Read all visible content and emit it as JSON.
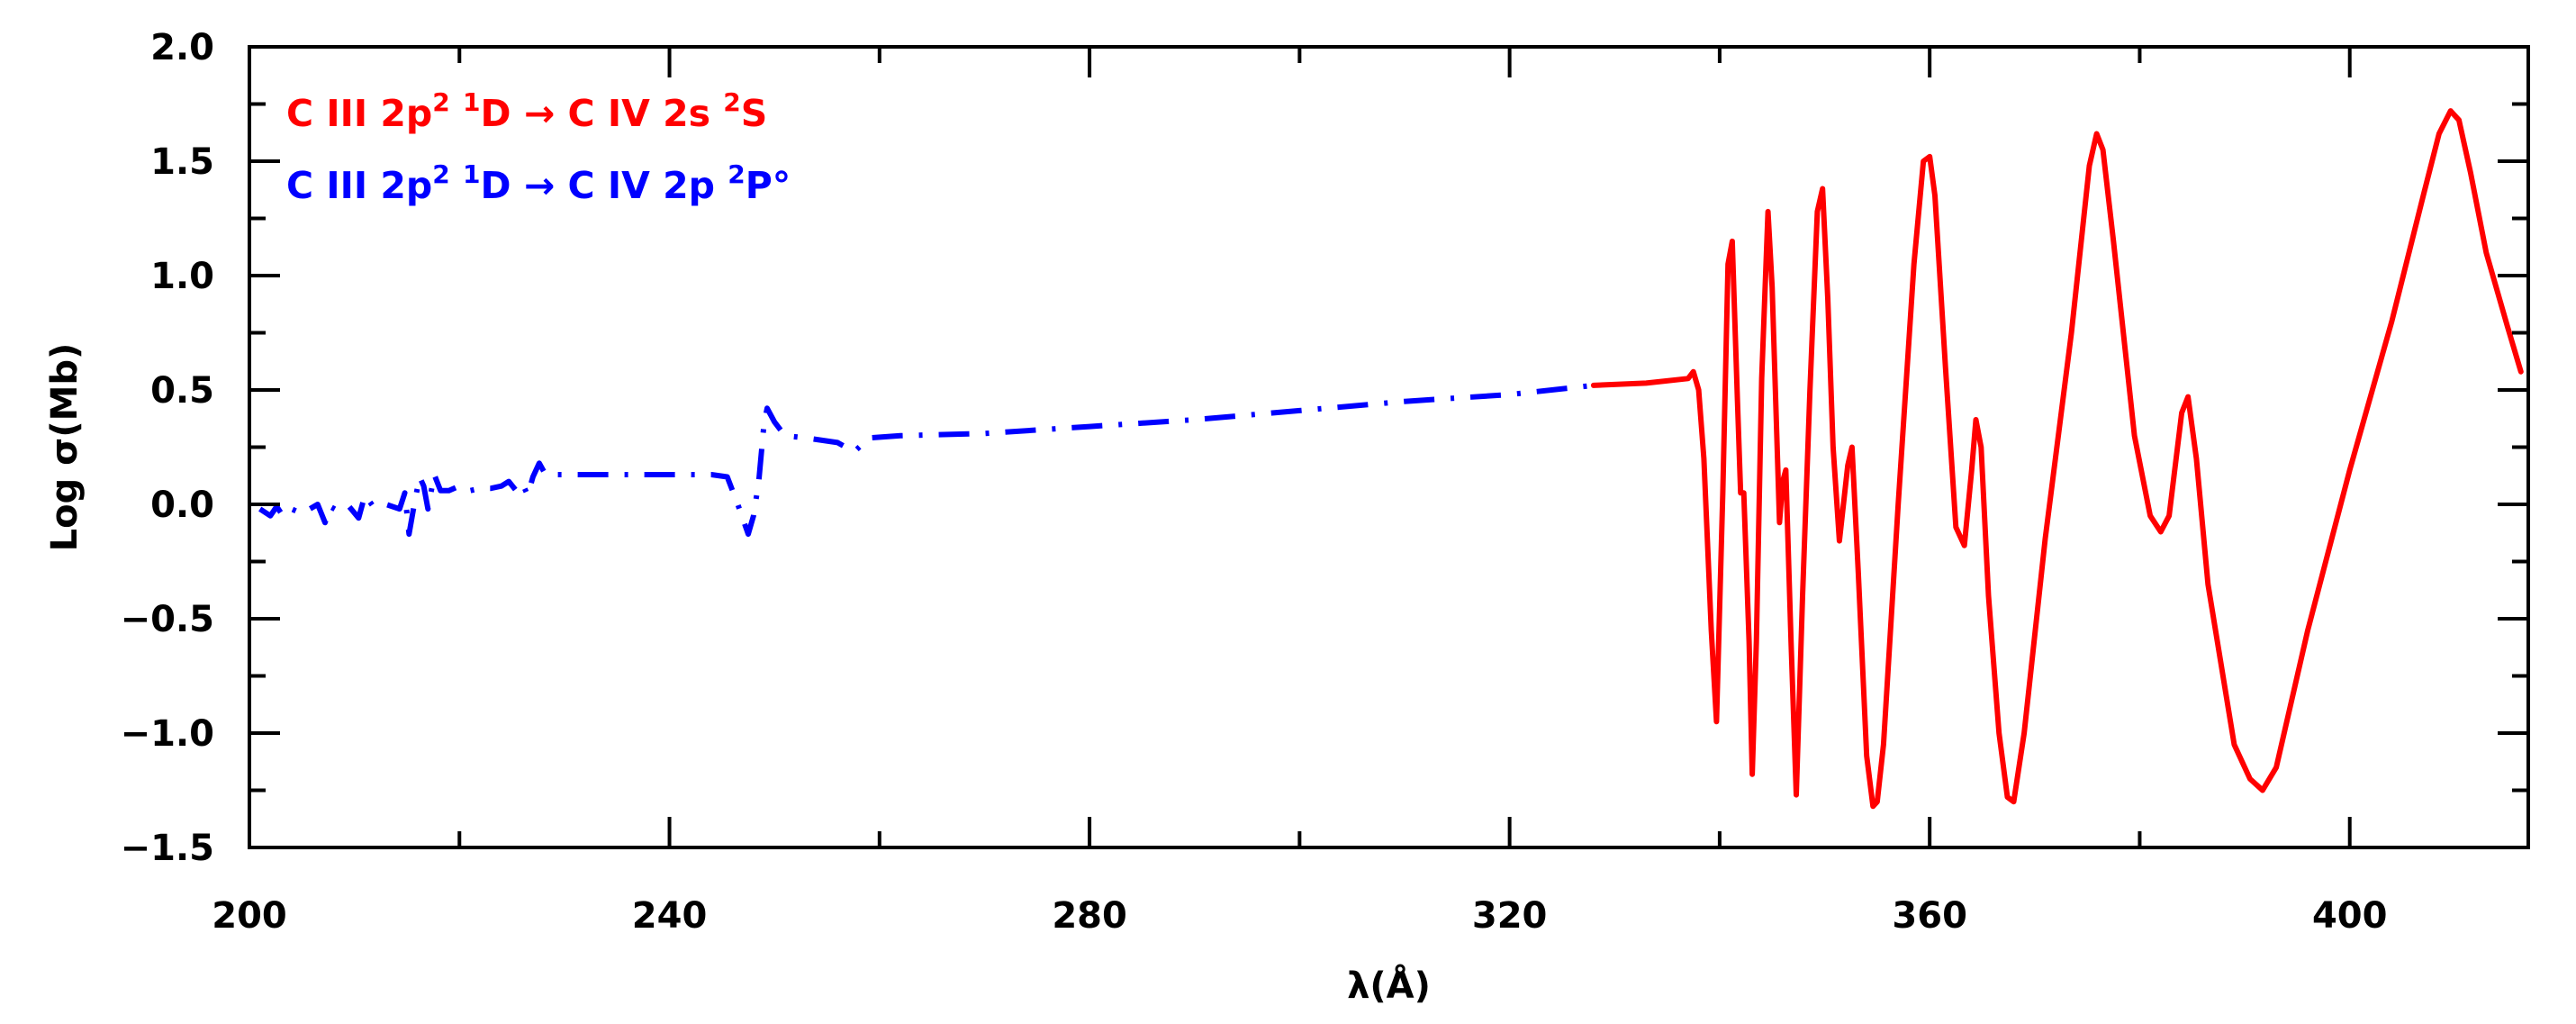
{
  "chart_data": {
    "type": "line",
    "title": "",
    "xlabel": "λ(Å)",
    "ylabel": "Log σ(Mb)",
    "xlim": [
      200,
      417
    ],
    "ylim": [
      -1.5,
      2.0
    ],
    "x_ticks": [
      200,
      240,
      280,
      320,
      360,
      400
    ],
    "y_ticks": [
      -1.5,
      -1.0,
      -0.5,
      0.0,
      0.5,
      1.0,
      1.5,
      2.0
    ],
    "x_tick_labels": [
      "200",
      "240",
      "280",
      "320",
      "360",
      "400"
    ],
    "y_tick_labels": [
      "−1.5",
      "−1.0",
      "−0.5",
      "0.0",
      "0.5",
      "1.0",
      "1.5",
      "2.0"
    ],
    "grid": false,
    "legend": {
      "position": "top-left",
      "entries": [
        {
          "series": 0,
          "base": "C III  2p",
          "sup1": "2",
          "mid1": " ",
          "sup2": "1",
          "mid2": "D → C IV  2s  ",
          "sup3": "2",
          "end": "S",
          "color": "#ff0000"
        },
        {
          "series": 1,
          "base": "C III  2p",
          "sup1": "2",
          "mid1": " ",
          "sup2": "1",
          "mid2": "D → C IV  2p  ",
          "sup3": "2",
          "end": "P°",
          "color": "#0000ff"
        }
      ]
    },
    "series": [
      {
        "name": "C III 2p2 1D → C IV 2s 2S",
        "color": "#ff0000",
        "style": "solid",
        "points": [
          [
            328,
            0.52
          ],
          [
            333,
            0.53
          ],
          [
            337,
            0.55
          ],
          [
            337.5,
            0.58
          ],
          [
            338,
            0.5
          ],
          [
            338.5,
            0.2
          ],
          [
            339.2,
            -0.55
          ],
          [
            339.7,
            -0.95
          ],
          [
            340.3,
            0.05
          ],
          [
            340.8,
            1.05
          ],
          [
            341.2,
            1.15
          ],
          [
            341.7,
            0.45
          ],
          [
            342.0,
            0.05
          ],
          [
            342.3,
            0.05
          ],
          [
            342.8,
            -0.6
          ],
          [
            343.1,
            -1.18
          ],
          [
            343.5,
            -0.6
          ],
          [
            344.0,
            0.55
          ],
          [
            344.6,
            1.28
          ],
          [
            345.0,
            0.95
          ],
          [
            345.7,
            -0.08
          ],
          [
            346.0,
            0.1
          ],
          [
            346.3,
            0.15
          ],
          [
            346.8,
            -0.6
          ],
          [
            347.3,
            -1.27
          ],
          [
            347.9,
            -0.4
          ],
          [
            348.6,
            0.5
          ],
          [
            349.3,
            1.28
          ],
          [
            349.8,
            1.38
          ],
          [
            350.3,
            0.9
          ],
          [
            350.8,
            0.25
          ],
          [
            351.4,
            -0.16
          ],
          [
            352.2,
            0.17
          ],
          [
            352.6,
            0.25
          ],
          [
            353.2,
            -0.3
          ],
          [
            354.0,
            -1.1
          ],
          [
            354.6,
            -1.32
          ],
          [
            355.0,
            -1.3
          ],
          [
            355.6,
            -1.05
          ],
          [
            357.0,
            0.0
          ],
          [
            358.5,
            1.05
          ],
          [
            359.4,
            1.5
          ],
          [
            360.0,
            1.52
          ],
          [
            360.5,
            1.35
          ],
          [
            361.5,
            0.6
          ],
          [
            362.5,
            -0.1
          ],
          [
            363.3,
            -0.18
          ],
          [
            364.0,
            0.15
          ],
          [
            364.4,
            0.37
          ],
          [
            364.9,
            0.25
          ],
          [
            365.6,
            -0.4
          ],
          [
            366.6,
            -1.0
          ],
          [
            367.4,
            -1.28
          ],
          [
            368.0,
            -1.3
          ],
          [
            369.0,
            -1.0
          ],
          [
            371.0,
            -0.15
          ],
          [
            373.5,
            0.75
          ],
          [
            375.2,
            1.48
          ],
          [
            375.9,
            1.62
          ],
          [
            376.5,
            1.55
          ],
          [
            377.5,
            1.15
          ],
          [
            379.5,
            0.3
          ],
          [
            381.0,
            -0.05
          ],
          [
            382.0,
            -0.12
          ],
          [
            382.8,
            -0.05
          ],
          [
            384.0,
            0.4
          ],
          [
            384.6,
            0.47
          ],
          [
            385.4,
            0.2
          ],
          [
            386.5,
            -0.35
          ],
          [
            389.0,
            -1.05
          ],
          [
            390.5,
            -1.2
          ],
          [
            391.7,
            -1.25
          ],
          [
            393.0,
            -1.15
          ],
          [
            396.0,
            -0.55
          ],
          [
            400.0,
            0.15
          ],
          [
            404.0,
            0.8
          ],
          [
            407.0,
            1.35
          ],
          [
            408.5,
            1.62
          ],
          [
            409.6,
            1.72
          ],
          [
            410.4,
            1.68
          ],
          [
            411.5,
            1.45
          ],
          [
            413.0,
            1.1
          ],
          [
            415.0,
            0.78
          ],
          [
            416.3,
            0.58
          ]
        ]
      },
      {
        "name": "C III 2p2 1D → C IV 2p 2P°",
        "color": "#0000ff",
        "style": "dash-dot",
        "points": [
          [
            201,
            -0.02
          ],
          [
            202,
            -0.05
          ],
          [
            202.6,
            -0.01
          ],
          [
            203.2,
            -0.05
          ],
          [
            204,
            -0.02
          ],
          [
            205,
            -0.04
          ],
          [
            206.5,
            0.0
          ],
          [
            207.2,
            -0.08
          ],
          [
            207.7,
            -0.01
          ],
          [
            208.5,
            -0.03
          ],
          [
            209.5,
            -0.01
          ],
          [
            210.4,
            -0.06
          ],
          [
            211.0,
            0.04
          ],
          [
            211.8,
            -0.01
          ],
          [
            213,
            0.0
          ],
          [
            214.3,
            -0.02
          ],
          [
            214.8,
            0.05
          ],
          [
            215.2,
            -0.13
          ],
          [
            215.7,
            0.0
          ],
          [
            216.2,
            0.12
          ],
          [
            216.6,
            0.08
          ],
          [
            217.0,
            -0.02
          ],
          [
            217.6,
            0.13
          ],
          [
            218.2,
            0.06
          ],
          [
            219,
            0.06
          ],
          [
            220,
            0.08
          ],
          [
            221,
            0.06
          ],
          [
            222,
            0.07
          ],
          [
            223,
            0.07
          ],
          [
            224,
            0.08
          ],
          [
            224.7,
            0.1
          ],
          [
            225.4,
            0.06
          ],
          [
            226,
            0.09
          ],
          [
            226.5,
            0.04
          ],
          [
            227.0,
            0.12
          ],
          [
            227.6,
            0.18
          ],
          [
            228.2,
            0.13
          ],
          [
            230,
            0.13
          ],
          [
            234,
            0.13
          ],
          [
            240,
            0.13
          ],
          [
            244,
            0.13
          ],
          [
            245.5,
            0.12
          ],
          [
            246.5,
            0.0
          ],
          [
            247.5,
            -0.13
          ],
          [
            248.0,
            -0.05
          ],
          [
            248.5,
            0.1
          ],
          [
            249.0,
            0.35
          ],
          [
            249.3,
            0.42
          ],
          [
            250,
            0.36
          ],
          [
            251,
            0.3
          ],
          [
            253,
            0.29
          ],
          [
            256,
            0.27
          ],
          [
            257.6,
            0.23
          ],
          [
            259,
            0.29
          ],
          [
            262,
            0.3
          ],
          [
            270,
            0.31
          ],
          [
            280,
            0.34
          ],
          [
            290,
            0.37
          ],
          [
            300,
            0.41
          ],
          [
            310,
            0.45
          ],
          [
            320,
            0.48
          ],
          [
            328,
            0.52
          ]
        ]
      }
    ]
  }
}
